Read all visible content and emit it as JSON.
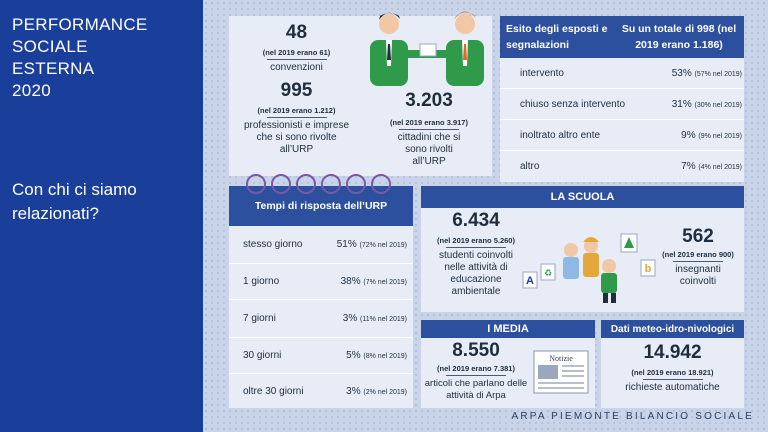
{
  "sidebar": {
    "title_lines": [
      "PERFORMANCE",
      "SOCIALE",
      "ESTERNA",
      "2020"
    ],
    "subtitle": "Con chi ci siamo relazionati?"
  },
  "urp": {
    "conv_value": "48",
    "conv_prev": "(nel 2019 erano 61)",
    "conv_label": "convenzioni",
    "prof_value": "995",
    "prof_prev": "(nel 2019 erano 1.212)",
    "prof_label": "professionisti e imprese che si sono rivolte all’URP",
    "cit_value": "3.203",
    "cit_prev": "(nel 2019 erano 3.917)",
    "cit_label": "cittadini che si sono rivolti all’URP"
  },
  "esiti": {
    "title": "Esito degli esposti e segnalazioni",
    "total": "Su un totale di 998 (nel 2019 erano 1.186)",
    "rows": [
      {
        "label": "intervento",
        "pct": "53%",
        "prev": "(57% nel 2019)"
      },
      {
        "label": "chiuso senza intervento",
        "pct": "31%",
        "prev": "(30% nel 2019)"
      },
      {
        "label": "inoltrato altro ente",
        "pct": "9%",
        "prev": "(9% nel 2019)"
      },
      {
        "label": "altro",
        "pct": "7%",
        "prev": "(4% nel 2019)"
      }
    ]
  },
  "tempi": {
    "title": "Tempi di risposta dell’URP",
    "rows": [
      {
        "label": "stesso giorno",
        "pct": "51%",
        "prev": "(72% nel 2019)"
      },
      {
        "label": "1 giorno",
        "pct": "38%",
        "prev": "(7% nel 2019)"
      },
      {
        "label": "7 giorni",
        "pct": "3%",
        "prev": "(11% nel 2019)"
      },
      {
        "label": "30 giorni",
        "pct": "5%",
        "prev": "(8% nel 2019)"
      },
      {
        "label": "oltre 30 giorni",
        "pct": "3%",
        "prev": "(2% nel 2019)"
      }
    ]
  },
  "scuola": {
    "title": "LA SCUOLA",
    "stud_value": "6.434",
    "stud_prev": "(nel 2019 erano 5.260)",
    "stud_label": "studenti coinvolti nelle attività di educazione ambientale",
    "ins_value": "562",
    "ins_prev": "(nel 2019 erano 900)",
    "ins_label": "insegnanti coinvolti",
    "letters": [
      "A",
      "b"
    ]
  },
  "media": {
    "title": "I MEDIA",
    "value": "8.550",
    "prev": "(nel 2019 erano 7.381)",
    "label": "articoli che parlano delle attività di Arpa",
    "paper_word": "Notizie"
  },
  "meteo": {
    "title": "Dati meteo-idro-nivologici",
    "value": "14.942",
    "prev": "(nel 2019 erano 18.921)",
    "label": "richieste automatiche"
  },
  "footer": "ARPA PIEMONTE BILANCIO SOCIALE",
  "colors": {
    "navy": "#1a3f9a",
    "header": "#2c4f9e",
    "card": "#e7ecf6",
    "green": "#2f9a4a"
  }
}
